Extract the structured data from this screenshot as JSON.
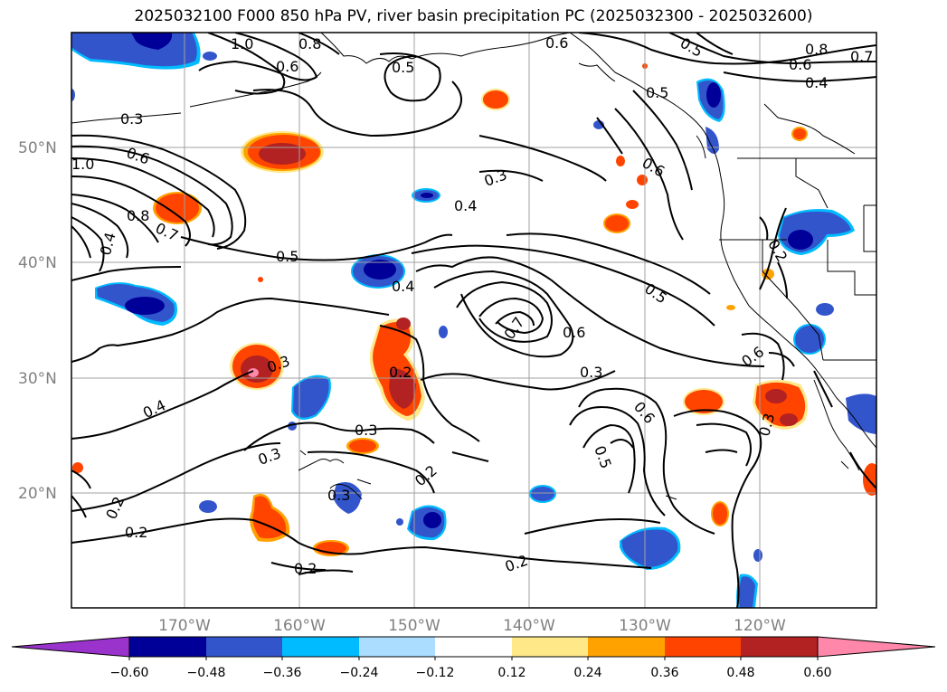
{
  "title": "2025032100 F000 850 hPa PV, river basin precipitation PC (2025032300 - 2025032600)",
  "map": {
    "lat_labels": [
      "50°N",
      "40°N",
      "30°N",
      "20°N"
    ],
    "lon_labels": [
      "170°W",
      "160°W",
      "150°W",
      "140°W",
      "130°W",
      "120°W"
    ],
    "contour_labels": [
      {
        "text": "1.0"
      },
      {
        "text": "0.8"
      },
      {
        "text": "0.6"
      },
      {
        "text": "0.5"
      },
      {
        "text": "0.8"
      },
      {
        "text": "0.6"
      },
      {
        "text": "0.7"
      },
      {
        "text": "0.4"
      },
      {
        "text": "0.5"
      },
      {
        "text": "0.6"
      },
      {
        "text": "0.5"
      },
      {
        "text": "0.3"
      },
      {
        "text": "0.6"
      },
      {
        "text": "1.0"
      },
      {
        "text": "0.3"
      },
      {
        "text": "0.4"
      },
      {
        "text": "0.8"
      },
      {
        "text": "0.7"
      },
      {
        "text": "0.4"
      },
      {
        "text": "0.5"
      },
      {
        "text": "0.4"
      },
      {
        "text": "0.2"
      },
      {
        "text": "0.7"
      },
      {
        "text": "0.6"
      },
      {
        "text": "0.5"
      },
      {
        "text": "0.3"
      },
      {
        "text": "0.6"
      },
      {
        "text": "0.3"
      },
      {
        "text": "0.2"
      },
      {
        "text": "0.4"
      },
      {
        "text": "0.6"
      },
      {
        "text": "0.3"
      },
      {
        "text": "0.3"
      },
      {
        "text": "0.5"
      },
      {
        "text": "0.2"
      },
      {
        "text": "0.3"
      },
      {
        "text": "0.3"
      },
      {
        "text": "0.2"
      },
      {
        "text": "0.2"
      },
      {
        "text": "0.2"
      },
      {
        "text": "0.2"
      },
      {
        "text": "0.6"
      }
    ]
  },
  "colorbar": {
    "colors": [
      "#9933cc",
      "#000099",
      "#3355cc",
      "#00bbff",
      "#aaddff",
      "#ffffff",
      "#ffe888",
      "#ffa200",
      "#ff4400",
      "#b22222",
      "#ff88aa",
      "#ff88aa"
    ],
    "tick_labels": [
      "−0.60",
      "−0.48",
      "−0.36",
      "−0.24",
      "−0.12",
      "0.12",
      "0.24",
      "0.36",
      "0.48",
      "0.60"
    ]
  },
  "colors": {
    "contour": "#000000",
    "grid": "#a0a0a0",
    "tick_text": "#808080"
  }
}
